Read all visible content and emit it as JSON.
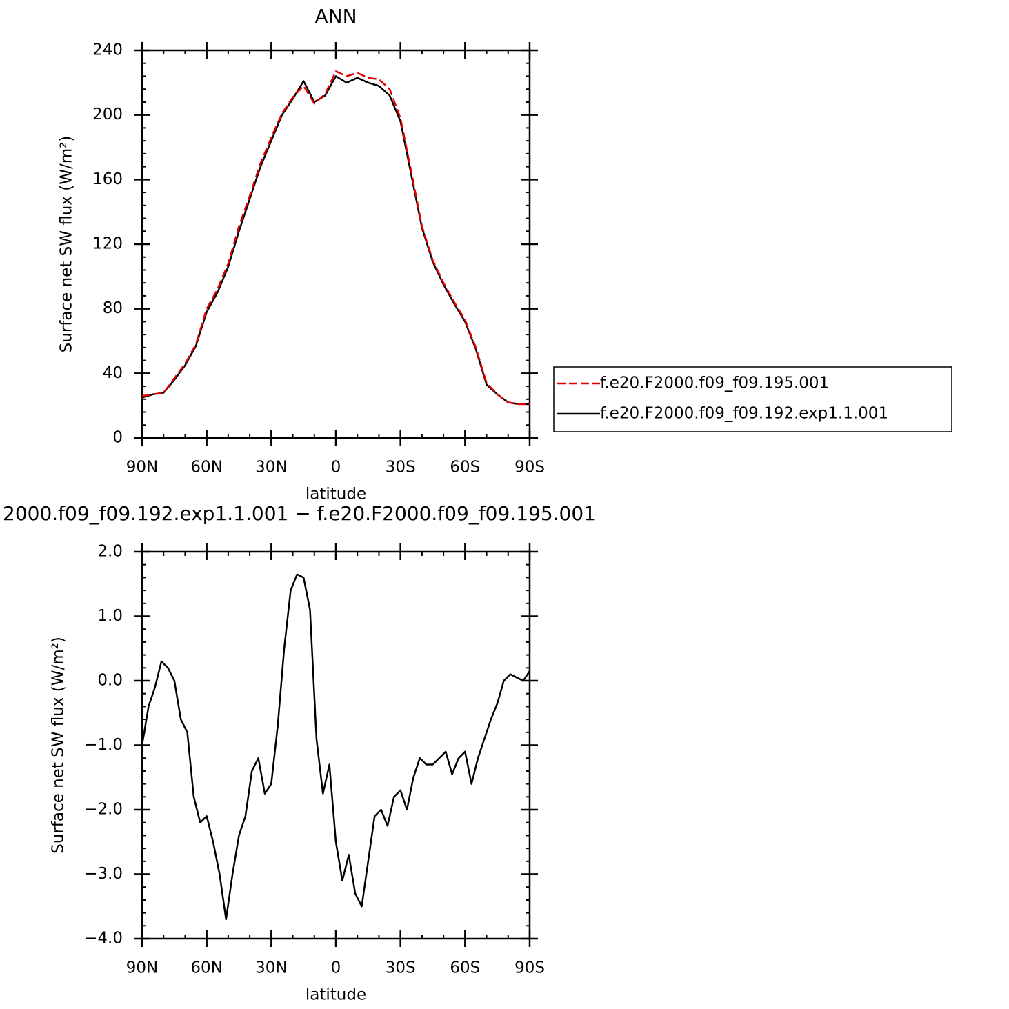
{
  "chart_data": [
    {
      "type": "line",
      "title": "ANN",
      "xlabel": "latitude",
      "ylabel": "Surface net SW flux (W/m²)",
      "x": [
        90,
        85,
        80,
        75,
        70,
        65,
        60,
        55,
        50,
        45,
        40,
        35,
        30,
        25,
        20,
        15,
        10,
        5,
        0,
        -5,
        -10,
        -15,
        -20,
        -25,
        -30,
        -35,
        -40,
        -45,
        -50,
        -55,
        -60,
        -65,
        -70,
        -75,
        -80,
        -85,
        -90
      ],
      "series": [
        {
          "name": "f.e20.F2000.f09_f09.195.001",
          "color": "#e00000",
          "dashed": true,
          "values": [
            26,
            27,
            28,
            37,
            46,
            58,
            80,
            92,
            108,
            131,
            150,
            170,
            186,
            201,
            211,
            218,
            207,
            213,
            227,
            224,
            226,
            223,
            222,
            216,
            198,
            165,
            131,
            110,
            96,
            84,
            73,
            56,
            34,
            27,
            22,
            21,
            21
          ]
        },
        {
          "name": "f.e20.F2000.f09_f09.192.exp1.1.001",
          "color": "#000000",
          "dashed": false,
          "values": [
            25,
            27,
            28,
            36,
            45,
            57,
            78,
            90,
            106,
            128,
            148,
            168,
            184,
            200,
            210,
            221,
            208,
            212,
            224,
            220,
            223,
            220,
            218,
            212,
            196,
            163,
            130,
            109,
            95,
            83,
            72,
            55,
            33,
            27,
            22,
            21,
            21
          ]
        }
      ],
      "xlim": [
        90,
        -90
      ],
      "xticks": [
        {
          "value": 90,
          "label": "90N"
        },
        {
          "value": 60,
          "label": "60N"
        },
        {
          "value": 30,
          "label": "30N"
        },
        0,
        {
          "value": -30,
          "label": "30S"
        },
        {
          "value": -60,
          "label": "60S"
        },
        {
          "value": -90,
          "label": "90S"
        }
      ],
      "ylim": [
        0,
        240
      ],
      "yticks": [
        0,
        40,
        80,
        120,
        160,
        200,
        240
      ],
      "legend": "right"
    },
    {
      "type": "line",
      "title": "2000.f09_f09.192.exp1.1.001 − f.e20.F2000.f09_f09.195.001",
      "xlabel": "latitude",
      "ylabel": "Surface net SW flux (W/m²)",
      "x": [
        90,
        87,
        84,
        81,
        78,
        75,
        72,
        69,
        66,
        63,
        60,
        57,
        54,
        51,
        48,
        45,
        42,
        39,
        36,
        33,
        30,
        27,
        24,
        21,
        18,
        15,
        12,
        9,
        6,
        3,
        0,
        -3,
        -6,
        -9,
        -12,
        -15,
        -18,
        -21,
        -24,
        -27,
        -30,
        -33,
        -36,
        -39,
        -42,
        -45,
        -48,
        -51,
        -54,
        -57,
        -60,
        -63,
        -66,
        -69,
        -72,
        -75,
        -78,
        -81,
        -84,
        -87,
        -90
      ],
      "series": [
        {
          "color": "#000000",
          "dashed": false,
          "values": [
            -1.0,
            -0.4,
            -0.1,
            0.3,
            0.2,
            0.0,
            -0.6,
            -0.8,
            -1.8,
            -2.2,
            -2.1,
            -2.5,
            -3.0,
            -3.7,
            -3.0,
            -2.4,
            -2.1,
            -1.4,
            -1.2,
            -1.75,
            -1.6,
            -0.7,
            0.5,
            1.4,
            1.65,
            1.6,
            1.1,
            -0.9,
            -1.75,
            -1.3,
            -2.5,
            -3.1,
            -2.7,
            -3.3,
            -3.5,
            -2.8,
            -2.1,
            -2.0,
            -2.25,
            -1.8,
            -1.7,
            -2.0,
            -1.5,
            -1.2,
            -1.3,
            -1.3,
            -1.2,
            -1.1,
            -1.45,
            -1.2,
            -1.1,
            -1.6,
            -1.2,
            -0.9,
            -0.6,
            -0.35,
            0.0,
            0.1,
            0.05,
            0.0,
            0.15
          ]
        }
      ],
      "xlim": [
        90,
        -90
      ],
      "xticks": [
        {
          "value": 90,
          "label": "90N"
        },
        {
          "value": 60,
          "label": "60N"
        },
        {
          "value": 30,
          "label": "30N"
        },
        0,
        {
          "value": -30,
          "label": "30S"
        },
        {
          "value": -60,
          "label": "60S"
        },
        {
          "value": -90,
          "label": "90S"
        }
      ],
      "ylim": [
        -4,
        2
      ],
      "yticks": [
        {
          "value": -4,
          "label": "−4.0"
        },
        {
          "value": -3,
          "label": "−3.0"
        },
        {
          "value": -2,
          "label": "−2.0"
        },
        {
          "value": -1,
          "label": "−1.0"
        },
        {
          "value": 0,
          "label": "0.0"
        },
        {
          "value": 1,
          "label": "1.0"
        },
        {
          "value": 2,
          "label": "2.0"
        }
      ]
    }
  ]
}
